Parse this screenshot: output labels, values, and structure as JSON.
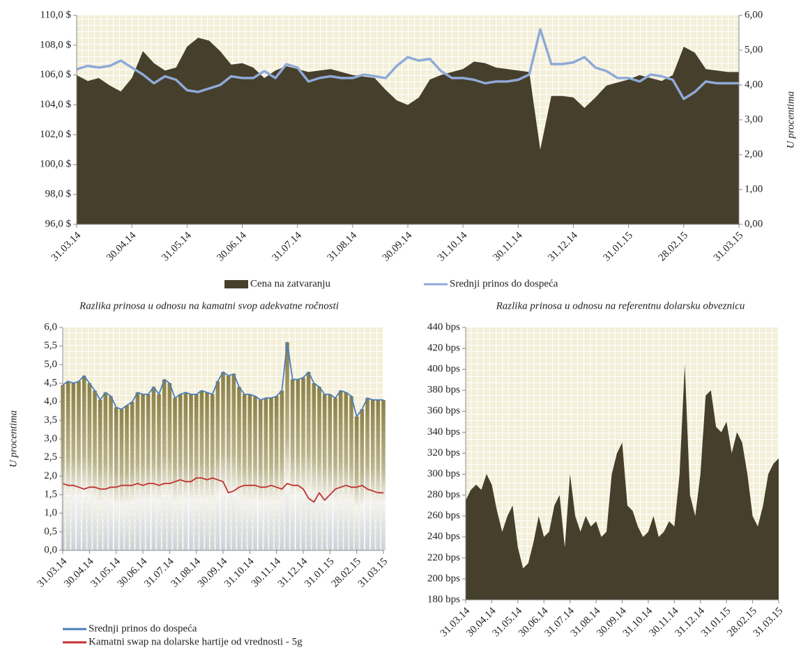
{
  "chart_data": [
    {
      "type": "area",
      "y2label": "U procentima",
      "categories": [
        "31.03.14",
        null,
        null,
        null,
        null,
        "30.04.14",
        null,
        null,
        null,
        null,
        "31.05.14",
        null,
        null,
        null,
        null,
        "30.06.14",
        null,
        null,
        null,
        null,
        "31.07.14",
        null,
        null,
        null,
        null,
        "31.08.14",
        null,
        null,
        null,
        null,
        "30.09.14",
        null,
        null,
        null,
        null,
        "31.10.14",
        null,
        null,
        null,
        null,
        "30.11.14",
        null,
        null,
        null,
        null,
        "31.12.14",
        null,
        null,
        null,
        null,
        "31.01.15",
        null,
        null,
        null,
        null,
        "28.02.15",
        null,
        null,
        null,
        null,
        "31.03.15"
      ],
      "series": [
        {
          "name": "Cena na zatvaranju",
          "color": "#463f2b",
          "values": [
            106.0,
            105.6,
            105.8,
            105.3,
            104.9,
            105.8,
            107.6,
            106.8,
            106.3,
            106.5,
            107.9,
            108.5,
            108.3,
            107.6,
            106.7,
            106.8,
            106.5,
            105.8,
            106.3,
            106.6,
            106.4,
            106.2,
            106.3,
            106.4,
            106.2,
            106.0,
            105.9,
            105.8,
            105.0,
            104.3,
            104.0,
            104.5,
            105.7,
            106.0,
            106.2,
            106.4,
            106.9,
            106.8,
            106.5,
            106.4,
            106.3,
            106.2,
            101.0,
            104.6,
            104.6,
            104.5,
            103.8,
            104.5,
            105.3,
            105.5,
            105.7,
            106.0,
            105.8,
            105.6,
            106.0,
            107.9,
            107.5,
            106.4,
            106.3,
            106.2,
            106.2
          ]
        },
        {
          "name": "Srednji prinos do dospeća",
          "color": "#8eaad8",
          "type": "line",
          "axis": "y2",
          "values": [
            4.45,
            4.55,
            4.5,
            4.55,
            4.7,
            4.5,
            4.3,
            4.05,
            4.25,
            4.15,
            3.85,
            3.8,
            3.9,
            4.0,
            4.25,
            4.2,
            4.2,
            4.4,
            4.2,
            4.6,
            4.5,
            4.1,
            4.2,
            4.25,
            4.2,
            4.2,
            4.3,
            4.25,
            4.2,
            4.55,
            4.8,
            4.7,
            4.75,
            4.4,
            4.2,
            4.2,
            4.15,
            4.05,
            4.1,
            4.1,
            4.15,
            4.3,
            5.6,
            4.6,
            4.6,
            4.65,
            4.8,
            4.5,
            4.4,
            4.2,
            4.2,
            4.1,
            4.3,
            4.25,
            4.15,
            3.6,
            3.8,
            4.1,
            4.05,
            4.05,
            4.05
          ]
        }
      ],
      "ylim": [
        96,
        110
      ],
      "yticks": [
        {
          "value": 96,
          "label": "96,0 $"
        },
        {
          "value": 98,
          "label": "98,0 $"
        },
        {
          "value": 100,
          "label": "100,0 $"
        },
        {
          "value": 102,
          "label": "102,0 $"
        },
        {
          "value": 104,
          "label": "104,0 $"
        },
        {
          "value": 106,
          "label": "106,0 $"
        },
        {
          "value": 108,
          "label": "108,0 $"
        },
        {
          "value": 110,
          "label": "110,0 $"
        }
      ],
      "y2lim": [
        0,
        6
      ],
      "y2ticks": [
        {
          "value": 0,
          "label": "0,00"
        },
        {
          "value": 1,
          "label": "1,00"
        },
        {
          "value": 2,
          "label": "2,00"
        },
        {
          "value": 3,
          "label": "3,00"
        },
        {
          "value": 4,
          "label": "4,00"
        },
        {
          "value": 5,
          "label": "5,00"
        },
        {
          "value": 6,
          "label": "6,00"
        }
      ],
      "legend": "bottom"
    },
    {
      "type": "line",
      "title": "Razlika prinosa u odnosu na kamatni svop adekvatne ročnosti",
      "ylabel": "U procentima",
      "categories": [
        "31.03.14",
        null,
        null,
        null,
        null,
        "30.04.14",
        null,
        null,
        null,
        null,
        "31.05.14",
        null,
        null,
        null,
        null,
        "30.06.14",
        null,
        null,
        null,
        null,
        "31.07.14",
        null,
        null,
        null,
        null,
        "31.08.14",
        null,
        null,
        null,
        null,
        "30.09.14",
        null,
        null,
        null,
        null,
        "31.10.14",
        null,
        null,
        null,
        null,
        "30.11.14",
        null,
        null,
        null,
        null,
        "31.12.14",
        null,
        null,
        null,
        null,
        "31.01.15",
        null,
        null,
        null,
        null,
        "28.02.15",
        null,
        null,
        null,
        null,
        "31.03.15"
      ],
      "series": [
        {
          "name": "Srednji prinos do dospeća",
          "color": "#4a7ebb",
          "type": "bar",
          "values": [
            4.45,
            4.55,
            4.5,
            4.55,
            4.7,
            4.5,
            4.3,
            4.05,
            4.25,
            4.15,
            3.85,
            3.8,
            3.9,
            4.0,
            4.25,
            4.2,
            4.2,
            4.4,
            4.2,
            4.6,
            4.5,
            4.1,
            4.2,
            4.25,
            4.2,
            4.2,
            4.3,
            4.25,
            4.2,
            4.55,
            4.8,
            4.7,
            4.75,
            4.4,
            4.2,
            4.2,
            4.15,
            4.05,
            4.1,
            4.1,
            4.15,
            4.3,
            5.6,
            4.6,
            4.6,
            4.65,
            4.8,
            4.5,
            4.4,
            4.2,
            4.2,
            4.1,
            4.3,
            4.25,
            4.15,
            3.6,
            3.8,
            4.1,
            4.05,
            4.05,
            4.05
          ]
        },
        {
          "name": "Kamatni swap na dolarske hartije od vrednosti - 5g",
          "color": "#c0302e",
          "values": [
            1.8,
            1.75,
            1.75,
            1.7,
            1.65,
            1.7,
            1.7,
            1.65,
            1.65,
            1.7,
            1.7,
            1.75,
            1.75,
            1.75,
            1.8,
            1.75,
            1.8,
            1.8,
            1.75,
            1.8,
            1.8,
            1.85,
            1.9,
            1.85,
            1.85,
            1.95,
            1.95,
            1.9,
            1.95,
            1.9,
            1.85,
            1.55,
            1.6,
            1.7,
            1.75,
            1.75,
            1.75,
            1.7,
            1.7,
            1.75,
            1.7,
            1.65,
            1.8,
            1.75,
            1.75,
            1.65,
            1.4,
            1.3,
            1.55,
            1.35,
            1.5,
            1.65,
            1.7,
            1.75,
            1.7,
            1.7,
            1.75,
            1.65,
            1.6,
            1.55,
            1.55
          ]
        }
      ],
      "ylim": [
        0,
        6
      ],
      "yticks": [
        {
          "value": 0,
          "label": "0,0"
        },
        {
          "value": 0.5,
          "label": "0,5"
        },
        {
          "value": 1,
          "label": "1,0"
        },
        {
          "value": 1.5,
          "label": "1,5"
        },
        {
          "value": 2,
          "label": "2,0"
        },
        {
          "value": 2.5,
          "label": "2,5"
        },
        {
          "value": 3,
          "label": "3,0"
        },
        {
          "value": 3.5,
          "label": "3,5"
        },
        {
          "value": 4,
          "label": "4,0"
        },
        {
          "value": 4.5,
          "label": "4,5"
        },
        {
          "value": 5,
          "label": "5,0"
        },
        {
          "value": 5.5,
          "label": "5,5"
        },
        {
          "value": 6,
          "label": "6,0"
        }
      ],
      "legend": "bottom"
    },
    {
      "type": "area",
      "title": "Razlika prinosa u odnosu na referentnu dolarsku obveznicu",
      "categories": [
        "31.03.14",
        null,
        null,
        null,
        null,
        "30.04.14",
        null,
        null,
        null,
        null,
        "31.05.14",
        null,
        null,
        null,
        null,
        "30.06.14",
        null,
        null,
        null,
        null,
        "31.07.14",
        null,
        null,
        null,
        null,
        "31.08.14",
        null,
        null,
        null,
        null,
        "30.09.14",
        null,
        null,
        null,
        null,
        "31.10.14",
        null,
        null,
        null,
        null,
        "30.11.14",
        null,
        null,
        null,
        null,
        "31.12.14",
        null,
        null,
        null,
        null,
        "31.01.15",
        null,
        null,
        null,
        null,
        "28.02.15",
        null,
        null,
        null,
        null,
        "31.03.15"
      ],
      "series": [
        {
          "color": "#463f2b",
          "values": [
            275,
            285,
            290,
            285,
            300,
            290,
            265,
            245,
            260,
            270,
            230,
            210,
            215,
            235,
            260,
            240,
            245,
            270,
            280,
            230,
            300,
            260,
            245,
            260,
            250,
            255,
            240,
            245,
            300,
            320,
            330,
            270,
            265,
            250,
            240,
            245,
            260,
            240,
            245,
            255,
            250,
            300,
            405,
            280,
            260,
            300,
            375,
            380,
            345,
            340,
            350,
            320,
            340,
            330,
            300,
            260,
            250,
            270,
            300,
            310,
            315
          ]
        }
      ],
      "ylim": [
        180,
        440
      ],
      "yticks": [
        {
          "value": 180,
          "label": "180 bps"
        },
        {
          "value": 200,
          "label": "200 bps"
        },
        {
          "value": 220,
          "label": "220 bps"
        },
        {
          "value": 240,
          "label": "240 bps"
        },
        {
          "value": 260,
          "label": "260 bps"
        },
        {
          "value": 280,
          "label": "280 bps"
        },
        {
          "value": 300,
          "label": "300 bps"
        },
        {
          "value": 320,
          "label": "320 bps"
        },
        {
          "value": 340,
          "label": "340 bps"
        },
        {
          "value": 360,
          "label": "360 bps"
        },
        {
          "value": 380,
          "label": "380 bps"
        },
        {
          "value": 400,
          "label": "400 bps"
        },
        {
          "value": 420,
          "label": "420 bps"
        },
        {
          "value": 440,
          "label": "440 bps"
        }
      ]
    }
  ]
}
